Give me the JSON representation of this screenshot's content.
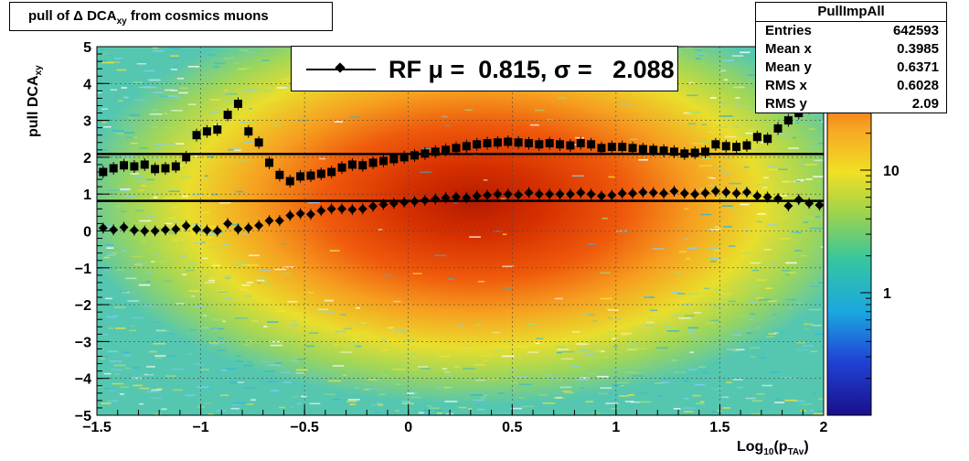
{
  "title": {
    "main": "pull of Δ DCA",
    "sub": "xy",
    "rest": " from cosmics muons"
  },
  "stats": {
    "name": "PullImpAll",
    "rows": [
      {
        "label": "Entries",
        "value": "642593"
      },
      {
        "label": "Mean x",
        "value": "0.3985"
      },
      {
        "label": "Mean y",
        "value": "0.6371"
      },
      {
        "label": "RMS x",
        "value": "0.6028"
      },
      {
        "label": "RMS y",
        "value": "2.09"
      }
    ]
  },
  "legend": {
    "text": "RF μ =  0.815, σ =   2.088"
  },
  "axes": {
    "ylabel_main": "pull DCA",
    "ylabel_sub": "xy",
    "xlabel_main": "Log",
    "xlabel_sub1": "10",
    "xlabel_mid": "(p",
    "xlabel_sub2": "TAv",
    "xlabel_end": ")"
  },
  "chart_data": {
    "type": "heatmap",
    "xlim": [
      -1.5,
      2
    ],
    "ylim": [
      -5,
      5
    ],
    "x_ticks": [
      "−1.5",
      "−1",
      "−0.5",
      "0",
      "0.5",
      "1",
      "1.5",
      "2"
    ],
    "x_tick_values": [
      -1.5,
      -1,
      -0.5,
      0,
      0.5,
      1,
      1.5,
      2
    ],
    "y_ticks": [
      "5",
      "4",
      "3",
      "2",
      "1",
      "0",
      "−1",
      "−2",
      "−3",
      "−4",
      "−5"
    ],
    "y_tick_values": [
      5,
      4,
      3,
      2,
      1,
      0,
      -1,
      -2,
      -3,
      -4,
      -5
    ],
    "z_scale": "log",
    "colorbar_ticks": [
      "10",
      "1"
    ],
    "colorbar_tick_values": [
      10,
      1
    ],
    "grid": true,
    "reference_lines": [
      0.815,
      2.088
    ],
    "mean_points": [
      [
        -1.47,
        0.08
      ],
      [
        -1.42,
        0.03
      ],
      [
        -1.37,
        0.1
      ],
      [
        -1.32,
        0.02
      ],
      [
        -1.27,
        0.0
      ],
      [
        -1.22,
        0.0
      ],
      [
        -1.17,
        0.03
      ],
      [
        -1.12,
        0.05
      ],
      [
        -1.07,
        0.14
      ],
      [
        -1.02,
        0.05
      ],
      [
        -0.97,
        0.02
      ],
      [
        -0.92,
        0.0
      ],
      [
        -0.87,
        0.2
      ],
      [
        -0.82,
        0.05
      ],
      [
        -0.77,
        0.08
      ],
      [
        -0.72,
        0.15
      ],
      [
        -0.67,
        0.28
      ],
      [
        -0.62,
        0.28
      ],
      [
        -0.57,
        0.42
      ],
      [
        -0.52,
        0.47
      ],
      [
        -0.47,
        0.45
      ],
      [
        -0.42,
        0.55
      ],
      [
        -0.37,
        0.6
      ],
      [
        -0.32,
        0.6
      ],
      [
        -0.27,
        0.58
      ],
      [
        -0.22,
        0.6
      ],
      [
        -0.17,
        0.67
      ],
      [
        -0.12,
        0.72
      ],
      [
        -0.07,
        0.75
      ],
      [
        -0.02,
        0.78
      ],
      [
        0.03,
        0.8
      ],
      [
        0.08,
        0.83
      ],
      [
        0.13,
        0.87
      ],
      [
        0.18,
        0.9
      ],
      [
        0.23,
        0.92
      ],
      [
        0.28,
        0.9
      ],
      [
        0.33,
        0.95
      ],
      [
        0.38,
        0.97
      ],
      [
        0.43,
        1.0
      ],
      [
        0.48,
        1.0
      ],
      [
        0.53,
        0.98
      ],
      [
        0.58,
        1.04
      ],
      [
        0.63,
        1.0
      ],
      [
        0.68,
        1.0
      ],
      [
        0.73,
        1.0
      ],
      [
        0.78,
        1.0
      ],
      [
        0.83,
        1.04
      ],
      [
        0.88,
        1.0
      ],
      [
        0.93,
        0.95
      ],
      [
        0.98,
        0.97
      ],
      [
        1.03,
        1.02
      ],
      [
        1.08,
        1.02
      ],
      [
        1.13,
        1.05
      ],
      [
        1.18,
        1.04
      ],
      [
        1.23,
        1.02
      ],
      [
        1.28,
        1.08
      ],
      [
        1.33,
        1.02
      ],
      [
        1.38,
        1.0
      ],
      [
        1.43,
        1.03
      ],
      [
        1.48,
        1.08
      ],
      [
        1.53,
        1.05
      ],
      [
        1.58,
        1.02
      ],
      [
        1.63,
        1.05
      ],
      [
        1.68,
        0.95
      ],
      [
        1.73,
        0.92
      ],
      [
        1.78,
        0.88
      ],
      [
        1.83,
        0.68
      ],
      [
        1.88,
        0.85
      ],
      [
        1.93,
        0.75
      ],
      [
        1.98,
        0.7
      ]
    ],
    "rms_points": [
      [
        -1.47,
        1.6
      ],
      [
        -1.42,
        1.7
      ],
      [
        -1.37,
        1.78
      ],
      [
        -1.32,
        1.75
      ],
      [
        -1.27,
        1.8
      ],
      [
        -1.22,
        1.68
      ],
      [
        -1.17,
        1.7
      ],
      [
        -1.12,
        1.75
      ],
      [
        -1.07,
        2.0
      ],
      [
        -1.02,
        2.6
      ],
      [
        -0.97,
        2.7
      ],
      [
        -0.92,
        2.75
      ],
      [
        -0.87,
        3.15
      ],
      [
        -0.82,
        3.45
      ],
      [
        -0.77,
        2.7
      ],
      [
        -0.72,
        2.4
      ],
      [
        -0.67,
        1.85
      ],
      [
        -0.62,
        1.52
      ],
      [
        -0.57,
        1.35
      ],
      [
        -0.52,
        1.48
      ],
      [
        -0.47,
        1.5
      ],
      [
        -0.42,
        1.55
      ],
      [
        -0.37,
        1.6
      ],
      [
        -0.32,
        1.72
      ],
      [
        -0.27,
        1.8
      ],
      [
        -0.22,
        1.78
      ],
      [
        -0.17,
        1.85
      ],
      [
        -0.12,
        1.9
      ],
      [
        -0.07,
        1.95
      ],
      [
        -0.02,
        2.0
      ],
      [
        0.03,
        2.05
      ],
      [
        0.08,
        2.1
      ],
      [
        0.13,
        2.15
      ],
      [
        0.18,
        2.2
      ],
      [
        0.23,
        2.25
      ],
      [
        0.28,
        2.3
      ],
      [
        0.33,
        2.35
      ],
      [
        0.38,
        2.38
      ],
      [
        0.43,
        2.4
      ],
      [
        0.48,
        2.42
      ],
      [
        0.53,
        2.4
      ],
      [
        0.58,
        2.38
      ],
      [
        0.63,
        2.35
      ],
      [
        0.68,
        2.38
      ],
      [
        0.73,
        2.35
      ],
      [
        0.78,
        2.32
      ],
      [
        0.83,
        2.38
      ],
      [
        0.88,
        2.35
      ],
      [
        0.93,
        2.25
      ],
      [
        0.98,
        2.28
      ],
      [
        1.03,
        2.28
      ],
      [
        1.08,
        2.25
      ],
      [
        1.13,
        2.22
      ],
      [
        1.18,
        2.2
      ],
      [
        1.23,
        2.18
      ],
      [
        1.28,
        2.15
      ],
      [
        1.33,
        2.1
      ],
      [
        1.38,
        2.12
      ],
      [
        1.43,
        2.15
      ],
      [
        1.48,
        2.35
      ],
      [
        1.53,
        2.3
      ],
      [
        1.58,
        2.28
      ],
      [
        1.63,
        2.32
      ],
      [
        1.68,
        2.55
      ],
      [
        1.73,
        2.5
      ],
      [
        1.78,
        2.78
      ],
      [
        1.83,
        3.0
      ],
      [
        1.88,
        3.2
      ],
      [
        1.93,
        3.35
      ],
      [
        1.98,
        3.9
      ]
    ]
  }
}
